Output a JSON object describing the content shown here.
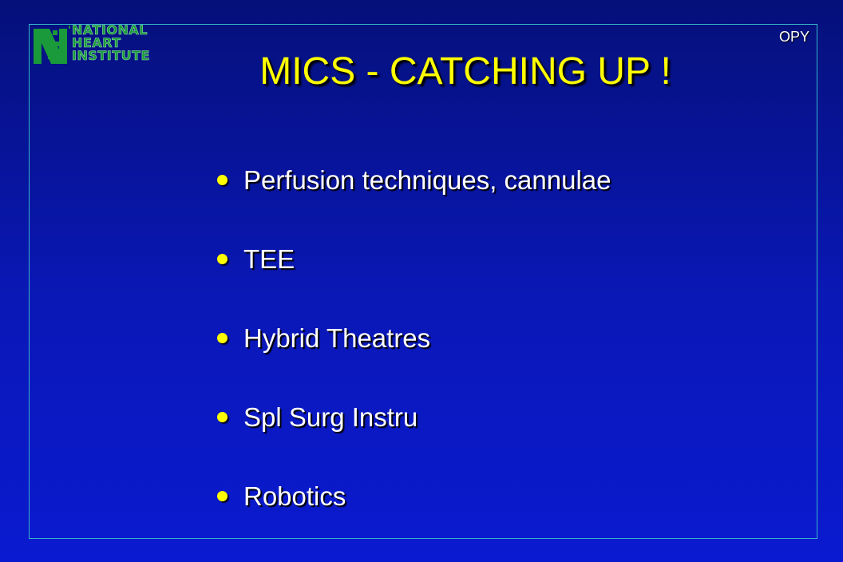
{
  "logo": {
    "lines": [
      "NATIONAL",
      "HEART",
      "INSTITUTE"
    ],
    "color": "#1a9a3a"
  },
  "corner_code": "OPY",
  "title": "MICS - CATCHING UP !",
  "bullets": [
    "Perfusion techniques, cannulae",
    "TEE",
    "Hybrid Theatres",
    "Spl Surg Instru",
    "Robotics"
  ],
  "colors": {
    "background": "#0a18b8",
    "title": "#ffff00",
    "bullet": "#ffff00",
    "text": "#ffffff",
    "frame": "#36b6c8"
  }
}
